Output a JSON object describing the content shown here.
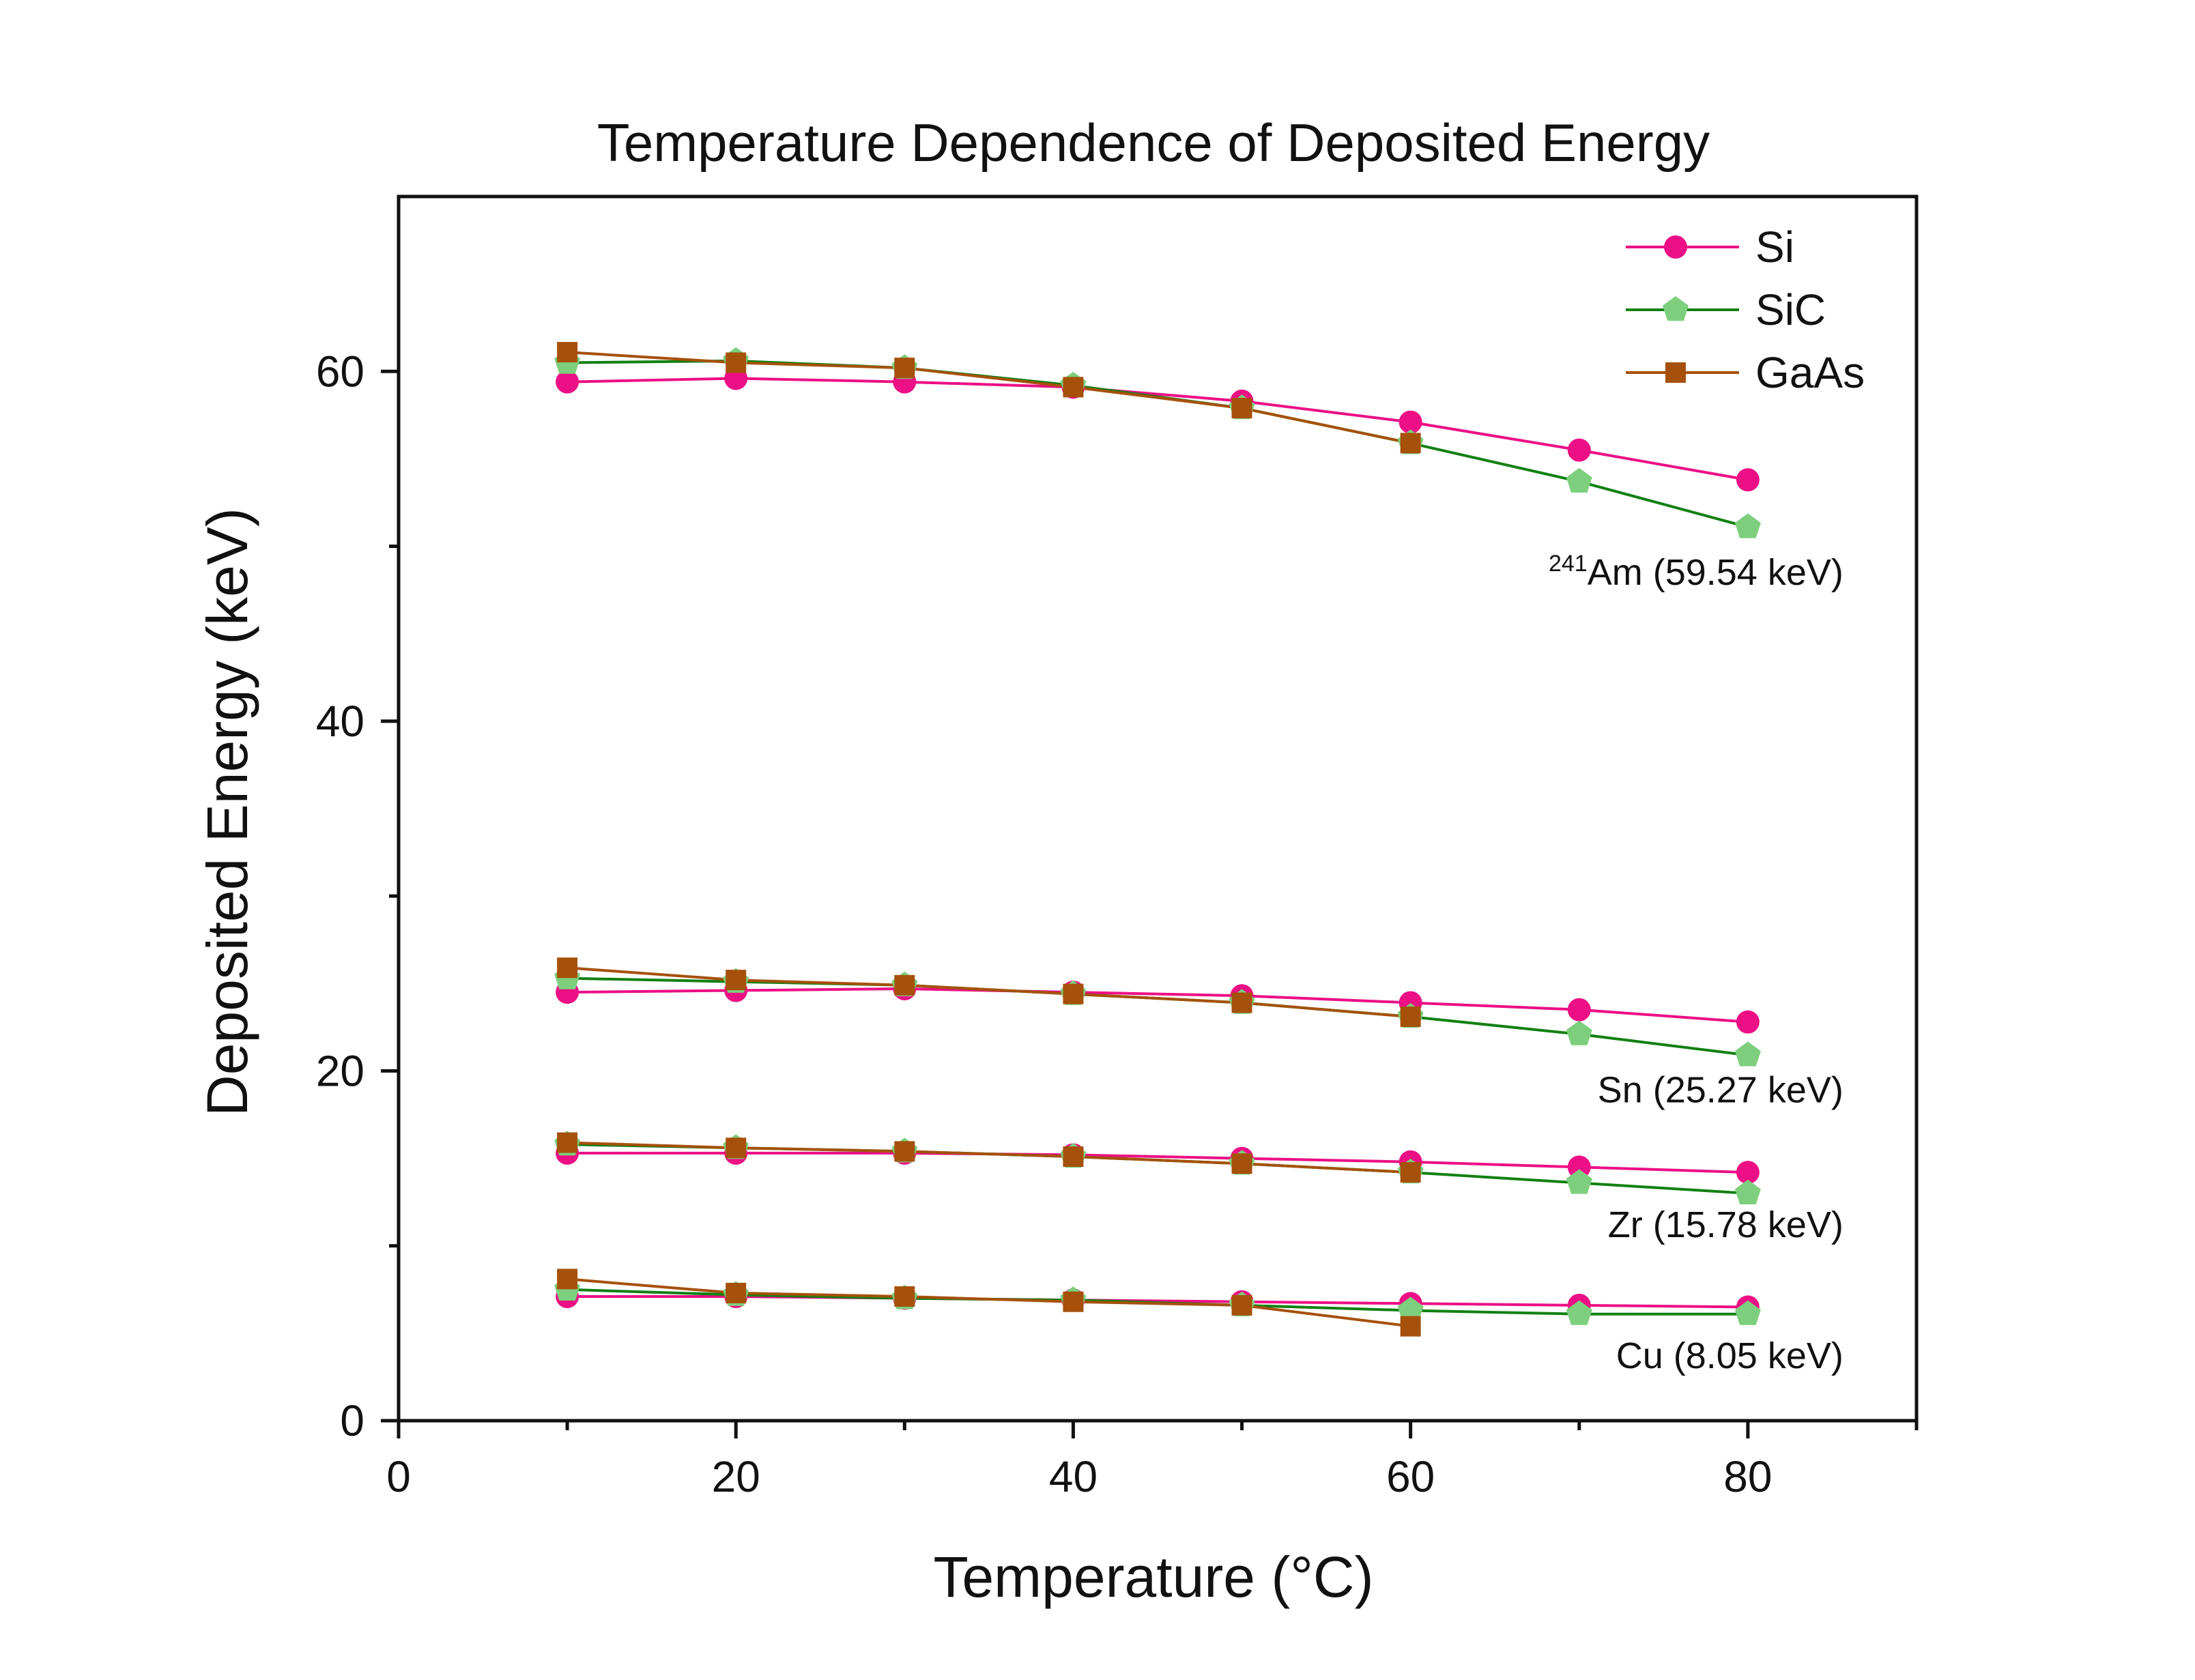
{
  "chart_data": {
    "type": "line",
    "title": "Temperature Dependence of Deposited Energy",
    "xlabel": "Temperature (°C)",
    "ylabel": "Deposited Energy (keV)",
    "xlim": [
      0,
      90
    ],
    "ylim": [
      0,
      70
    ],
    "x_major_ticks": [
      0,
      20,
      40,
      60,
      80
    ],
    "y_major_ticks": [
      0,
      20,
      40,
      60
    ],
    "y_minor_ticks": [
      10,
      30,
      50
    ],
    "grid": false,
    "legend_position": "top-right",
    "series": [
      {
        "name": "Si",
        "color": "#ec0f85",
        "marker": "circle",
        "groups": [
          {
            "source": "241Am",
            "x": [
              10,
              20,
              30,
              40,
              50,
              60,
              70,
              80
            ],
            "y": [
              59.4,
              59.6,
              59.4,
              59.1,
              58.3,
              57.1,
              55.5,
              53.8
            ]
          },
          {
            "source": "Sn",
            "x": [
              10,
              20,
              30,
              40,
              50,
              60,
              70,
              80
            ],
            "y": [
              24.5,
              24.6,
              24.7,
              24.5,
              24.3,
              23.9,
              23.5,
              22.8
            ]
          },
          {
            "source": "Zr",
            "x": [
              10,
              20,
              30,
              40,
              50,
              60,
              70,
              80
            ],
            "y": [
              15.3,
              15.3,
              15.3,
              15.2,
              15.0,
              14.8,
              14.5,
              14.2
            ]
          },
          {
            "source": "Cu",
            "x": [
              10,
              20,
              30,
              40,
              50,
              60,
              70,
              80
            ],
            "y": [
              7.1,
              7.1,
              7.0,
              6.9,
              6.8,
              6.7,
              6.6,
              6.5
            ]
          }
        ]
      },
      {
        "name": "SiC",
        "color": "#128012",
        "marker_color": "#7dcf7d",
        "marker": "pentagon",
        "groups": [
          {
            "source": "241Am",
            "x": [
              10,
              20,
              30,
              40,
              50,
              60,
              70,
              80
            ],
            "y": [
              60.5,
              60.6,
              60.2,
              59.2,
              57.9,
              55.9,
              53.7,
              51.1
            ]
          },
          {
            "source": "Sn",
            "x": [
              10,
              20,
              30,
              40,
              50,
              60,
              70,
              80
            ],
            "y": [
              25.3,
              25.1,
              24.9,
              24.4,
              23.9,
              23.1,
              22.1,
              20.9
            ]
          },
          {
            "source": "Zr",
            "x": [
              10,
              20,
              30,
              40,
              50,
              60,
              70,
              80
            ],
            "y": [
              15.8,
              15.6,
              15.4,
              15.1,
              14.7,
              14.2,
              13.6,
              13.0
            ]
          },
          {
            "source": "Cu",
            "x": [
              10,
              20,
              30,
              40,
              50,
              60,
              70,
              80
            ],
            "y": [
              7.5,
              7.2,
              7.0,
              6.9,
              6.6,
              6.3,
              6.1,
              6.1
            ]
          }
        ]
      },
      {
        "name": "GaAs",
        "color": "#a6510b",
        "marker": "square",
        "groups": [
          {
            "source": "241Am",
            "x": [
              10,
              20,
              30,
              40,
              50,
              60
            ],
            "y": [
              61.1,
              60.5,
              60.2,
              59.1,
              57.9,
              55.9
            ]
          },
          {
            "source": "Sn",
            "x": [
              10,
              20,
              30,
              40,
              50,
              60
            ],
            "y": [
              25.9,
              25.2,
              24.9,
              24.4,
              23.9,
              23.1
            ]
          },
          {
            "source": "Zr",
            "x": [
              10,
              20,
              30,
              40,
              50,
              60
            ],
            "y": [
              15.9,
              15.6,
              15.4,
              15.1,
              14.7,
              14.2
            ]
          },
          {
            "source": "Cu",
            "x": [
              10,
              20,
              30,
              40,
              50,
              60
            ],
            "y": [
              8.1,
              7.3,
              7.1,
              6.8,
              6.6,
              5.4
            ]
          }
        ]
      }
    ],
    "annotations": [
      {
        "sup": "241",
        "text": "Am (59.54 keV)",
        "x": 80,
        "y": 47.8
      },
      {
        "text": "Sn (25.27 keV)",
        "x": 80,
        "y": 18.2
      },
      {
        "text": "Zr (15.78 keV)",
        "x": 80,
        "y": 10.5
      },
      {
        "text": "Cu (8.05 keV)",
        "x": 80,
        "y": 3.0
      }
    ]
  }
}
